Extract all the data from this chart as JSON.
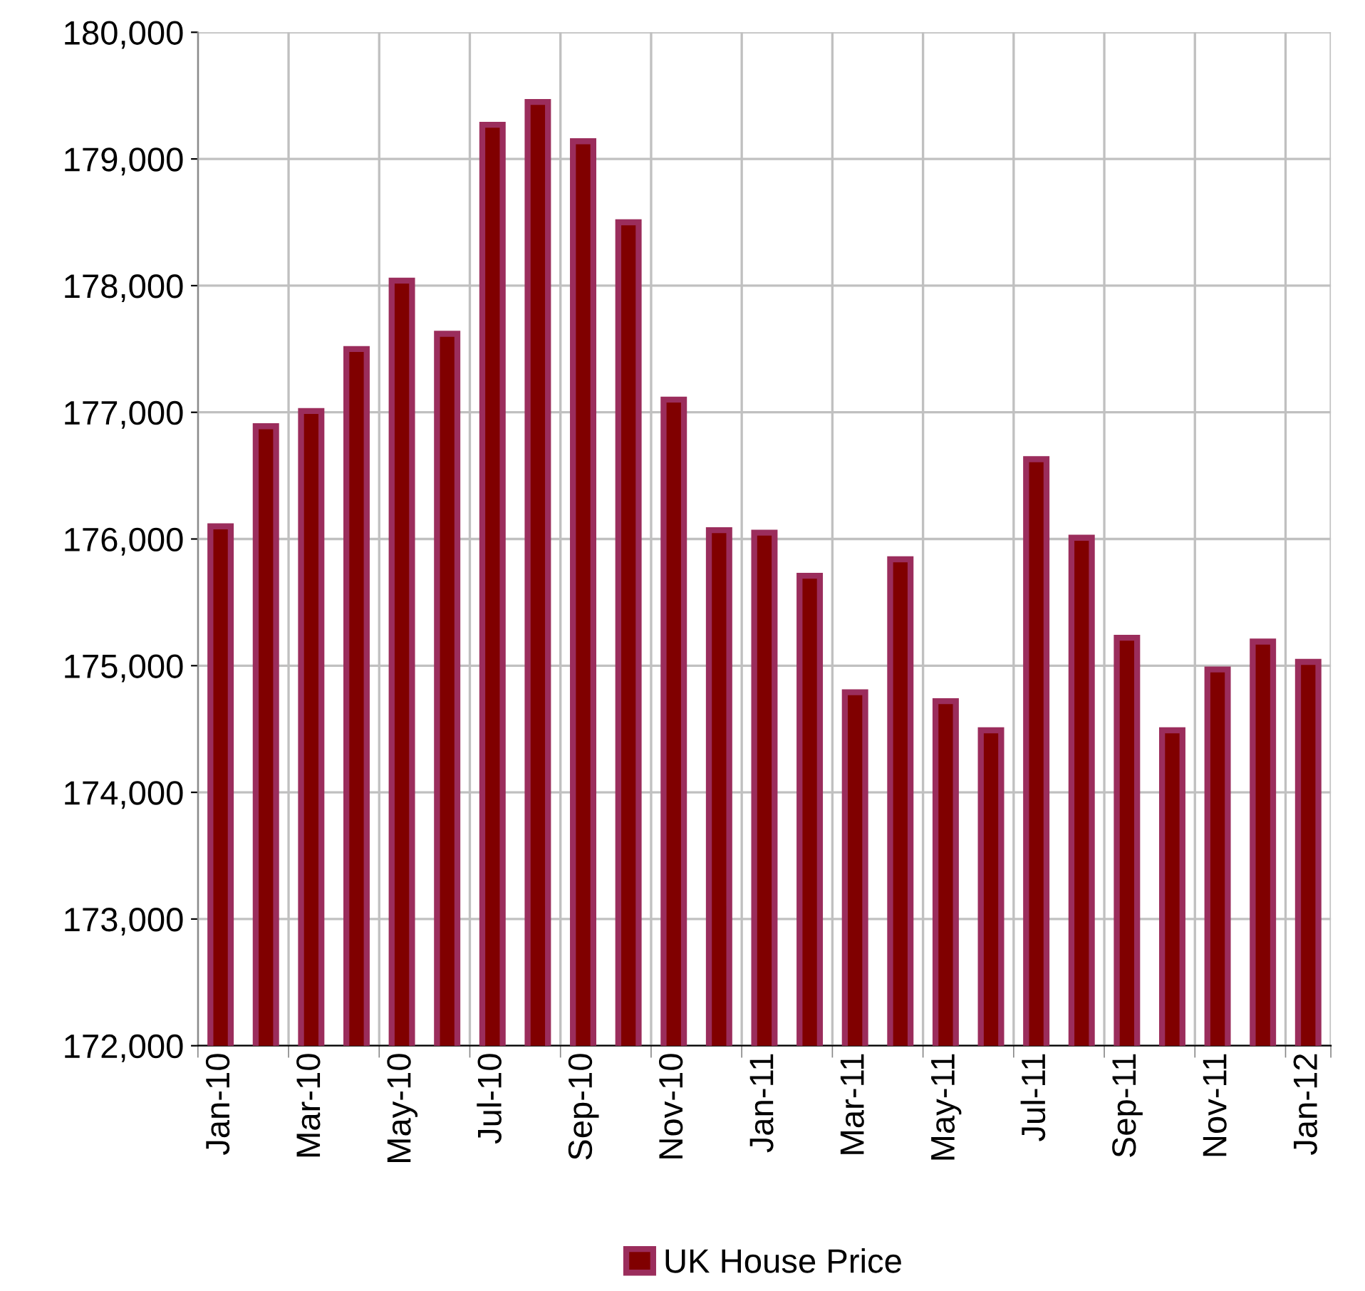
{
  "chart_data": {
    "type": "bar",
    "categories": [
      "Jan-10",
      null,
      "Mar-10",
      null,
      "May-10",
      null,
      "Jul-10",
      null,
      "Sep-10",
      null,
      "Nov-10",
      null,
      "Jan-11",
      null,
      "Mar-11",
      null,
      "May-11",
      null,
      "Jul-11",
      null,
      "Sep-11",
      null,
      "Nov-11",
      null,
      "Jan-12"
    ],
    "series": [
      {
        "name": "UK House Price",
        "color": "#800000",
        "values": [
          176100,
          176890,
          177010,
          177500,
          178040,
          177620,
          179270,
          179450,
          179140,
          178500,
          177100,
          176070,
          176050,
          175710,
          174790,
          175840,
          174720,
          174490,
          176630,
          176010,
          175220,
          174490,
          174970,
          175190,
          175030
        ]
      }
    ],
    "ylim": [
      172000,
      180000
    ],
    "yticks": [
      {
        "value": 172000,
        "label": "172,000"
      },
      {
        "value": 173000,
        "label": "173,000"
      },
      {
        "value": 174000,
        "label": "174,000"
      },
      {
        "value": 175000,
        "label": "175,000"
      },
      {
        "value": 176000,
        "label": "176,000"
      },
      {
        "value": 177000,
        "label": "177,000"
      },
      {
        "value": 178000,
        "label": "178,000"
      },
      {
        "value": 179000,
        "label": "179,000"
      },
      {
        "value": 180000,
        "label": "180,000"
      }
    ],
    "grid": true,
    "legend": "bottom"
  }
}
